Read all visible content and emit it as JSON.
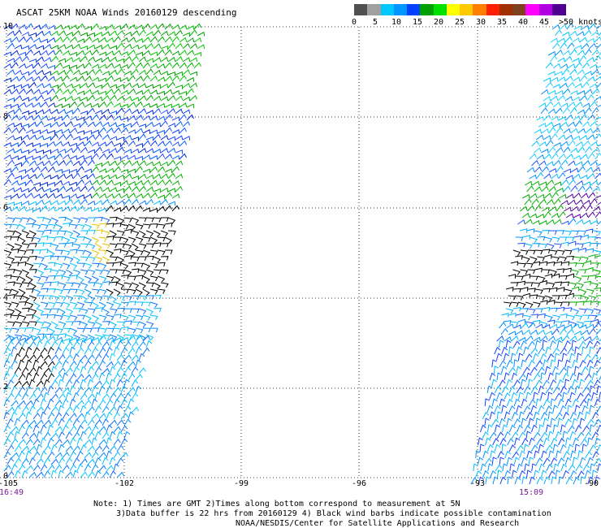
{
  "title": "ASCAT 25KM NOAA Winds 20160129 descending",
  "legend": {
    "colors": [
      "#505050",
      "#a0a0a0",
      "#00c8ff",
      "#0096ff",
      "#0040ff",
      "#00a000",
      "#00e000",
      "#ffff00",
      "#ffc800",
      "#ff8000",
      "#ff2000",
      "#a03000",
      "#804020",
      "#ff00ff",
      "#b000e0",
      "#500090"
    ],
    "labels": [
      "0",
      "5",
      "10",
      "15",
      "20",
      "25",
      "30",
      "35",
      "40",
      "45",
      ">50 knots"
    ]
  },
  "lat_labels": [
    "10",
    "8",
    "6",
    "4",
    "2",
    "0"
  ],
  "lon_labels": [
    "-105",
    "-102",
    "-99",
    "-96",
    "-93",
    "-90"
  ],
  "time_labels": [
    "16:49",
    "15:09"
  ],
  "notes": [
    "Note: 1) Times are GMT 2)Times along bottom correspond to measurement at 5N",
    "3)Data buffer is 22 hrs from 20160129 4) Black wind barbs indicate possible contamination",
    "NOAA/NESDIS/Center for Satellite Applications and Research"
  ]
}
